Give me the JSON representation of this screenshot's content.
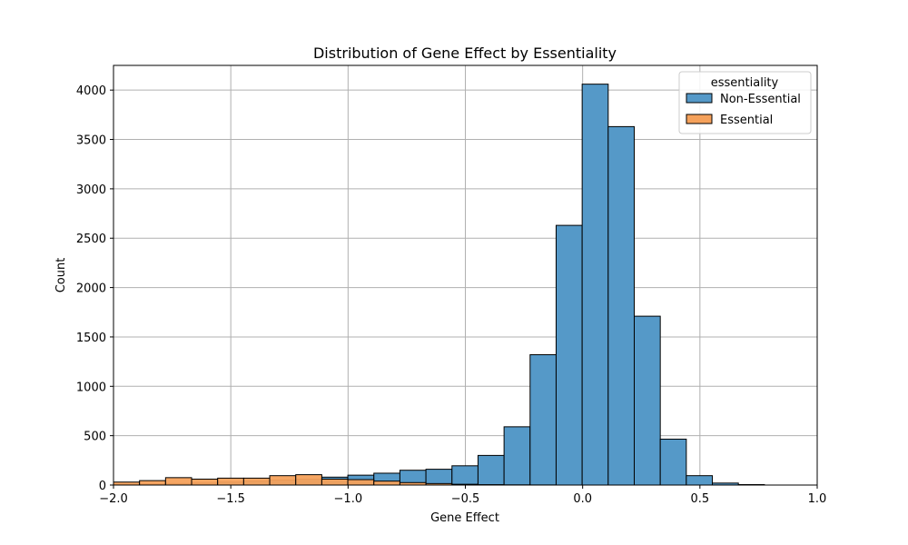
{
  "chart_data": {
    "type": "bar",
    "subtype": "histogram-overlay",
    "title": "Distribution of Gene Effect by Essentiality",
    "xlabel": "Gene Effect",
    "ylabel": "Count",
    "xlim": [
      -2.0,
      1.0
    ],
    "ylim": [
      0,
      4250
    ],
    "xticks": [
      -2.0,
      -1.5,
      -1.0,
      -0.5,
      0.0,
      0.5,
      1.0
    ],
    "xtick_labels": [
      "−2.0",
      "−1.5",
      "−1.0",
      "−0.5",
      "0.0",
      "0.5",
      "1.0"
    ],
    "yticks": [
      0,
      500,
      1000,
      1500,
      2000,
      2500,
      3000,
      3500,
      4000
    ],
    "ytick_labels": [
      "0",
      "500",
      "1000",
      "1500",
      "2000",
      "2500",
      "3000",
      "3500",
      "4000"
    ],
    "grid": true,
    "legend_title": "essentiality",
    "legend_placement": "top-right",
    "bin_start": -2.0,
    "bin_width": 0.111,
    "series": [
      {
        "name": "Non-Essential",
        "color": "#5599c8",
        "values": [
          5,
          10,
          15,
          20,
          30,
          40,
          50,
          60,
          80,
          100,
          120,
          150,
          160,
          195,
          300,
          590,
          1320,
          2630,
          4060,
          3630,
          1710,
          465,
          95,
          20,
          5
        ]
      },
      {
        "name": "Essential",
        "color": "#f5a15b",
        "values": [
          30,
          45,
          75,
          60,
          70,
          70,
          95,
          105,
          60,
          55,
          40,
          25,
          15,
          8,
          4,
          2,
          1,
          0,
          0,
          0,
          0,
          0,
          0,
          0,
          0
        ]
      }
    ]
  }
}
